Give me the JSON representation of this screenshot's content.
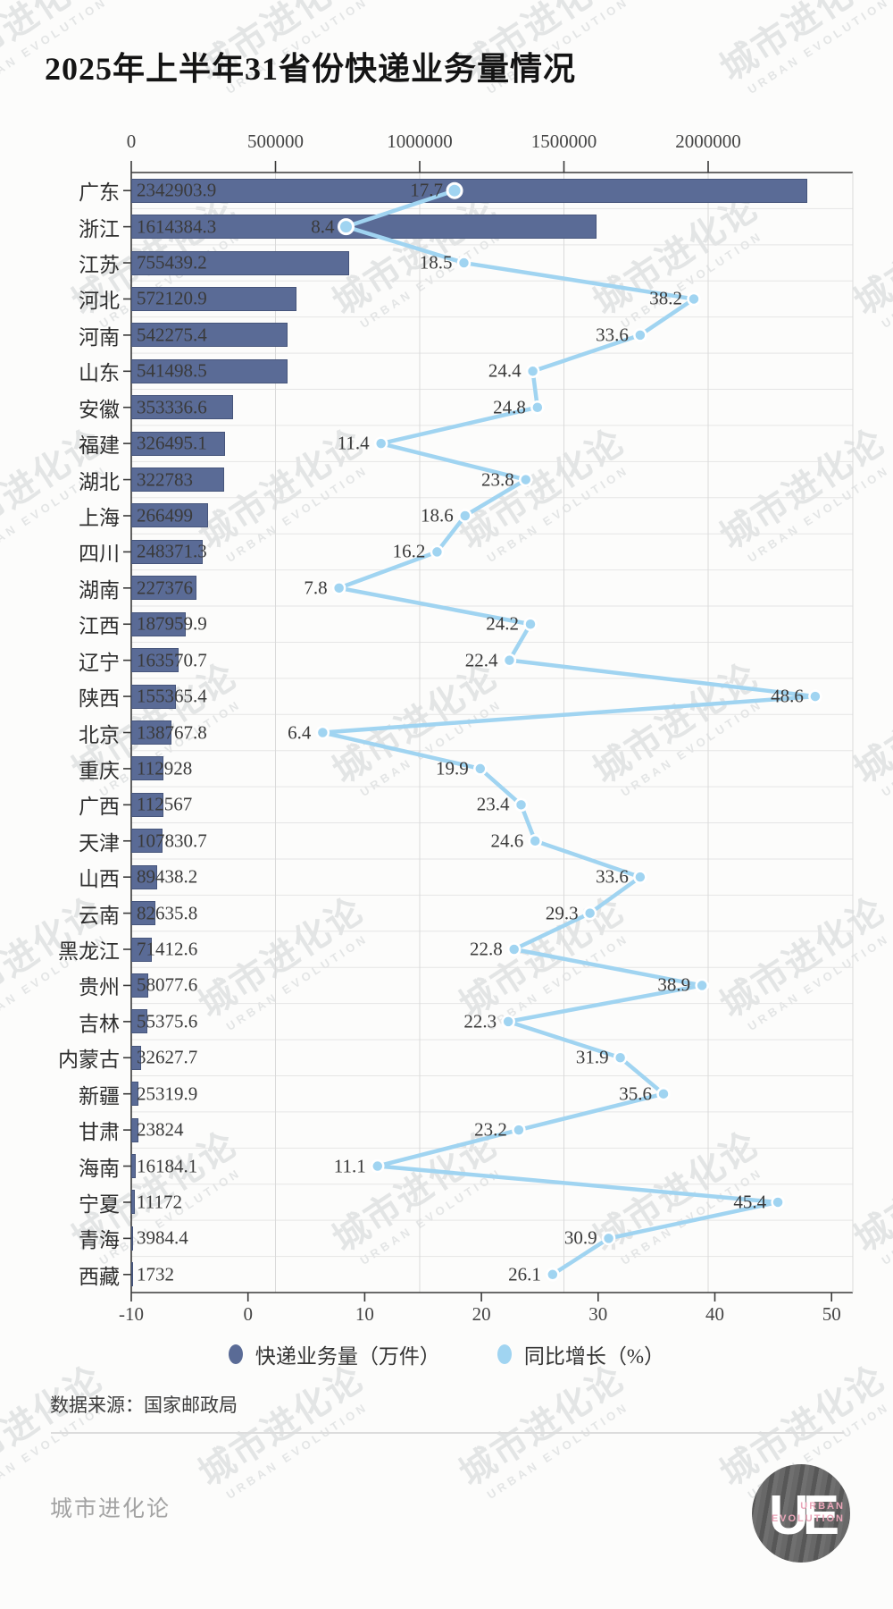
{
  "title": "2025年上半年31省份快递业务量情况",
  "watermark": {
    "cn": "城市进化论",
    "en": "URBAN EVOLUTION"
  },
  "chart_data": {
    "type": "bar",
    "orientation": "horizontal",
    "title": "2025年上半年31省份快递业务量情况",
    "categories": [
      "广东",
      "浙江",
      "江苏",
      "河北",
      "河南",
      "山东",
      "安徽",
      "福建",
      "湖北",
      "上海",
      "四川",
      "湖南",
      "江西",
      "辽宁",
      "陕西",
      "北京",
      "重庆",
      "广西",
      "天津",
      "山西",
      "云南",
      "黑龙江",
      "贵州",
      "吉林",
      "内蒙古",
      "新疆",
      "甘肃",
      "海南",
      "宁夏",
      "青海",
      "西藏"
    ],
    "series": [
      {
        "name": "快递业务量（万件）",
        "type": "bar",
        "axis": "top",
        "color": "#5a6b96",
        "values": [
          2342903.9,
          1614384.3,
          755439.2,
          572120.9,
          542275.4,
          541498.5,
          353336.6,
          326495.1,
          322783,
          266499,
          248371.3,
          227376,
          187959.9,
          163570.7,
          155365.4,
          138767.8,
          112928,
          112567,
          107830.7,
          89438.2,
          82635.8,
          71412.6,
          58077.6,
          55375.6,
          32627.7,
          25319.9,
          23824,
          16184.1,
          11172,
          3984.4,
          1732
        ]
      },
      {
        "name": "同比增长（%）",
        "type": "line",
        "axis": "bottom",
        "color": "#a0d4f1",
        "values": [
          17.7,
          8.4,
          18.5,
          38.2,
          33.6,
          24.4,
          24.8,
          11.4,
          23.8,
          18.6,
          16.2,
          7.8,
          24.2,
          22.4,
          48.6,
          6.4,
          19.9,
          23.4,
          24.6,
          33.6,
          29.3,
          22.8,
          38.9,
          22.3,
          31.9,
          35.6,
          23.2,
          11.1,
          45.4,
          30.9,
          26.1
        ]
      }
    ],
    "top_axis": {
      "ticks": [
        0,
        500000,
        1000000,
        1500000,
        2000000
      ],
      "range": [
        0,
        2500000
      ]
    },
    "bottom_axis": {
      "ticks": [
        -10,
        0,
        10,
        20,
        30,
        40,
        50
      ],
      "range": [
        -10,
        51.8
      ]
    },
    "grid": true,
    "legend_position": "bottom"
  },
  "legend": {
    "items": [
      {
        "label": "快递业务量（万件）",
        "color": "#5a6b96"
      },
      {
        "label": "同比增长（%）",
        "color": "#a0d4f1"
      }
    ]
  },
  "source": "数据来源：国家邮政局",
  "footer": {
    "brand": "城市进化论",
    "logo": {
      "letters": "UE",
      "line1": "URBAN",
      "line2": "EVOLUTION"
    }
  },
  "colors": {
    "bar": "#5a6b96",
    "line": "#a0d4f1",
    "grid": "#dadada",
    "row_grid": "#e5e5e5",
    "spine": "#3a3a3a",
    "text": "#3a3a3a"
  }
}
